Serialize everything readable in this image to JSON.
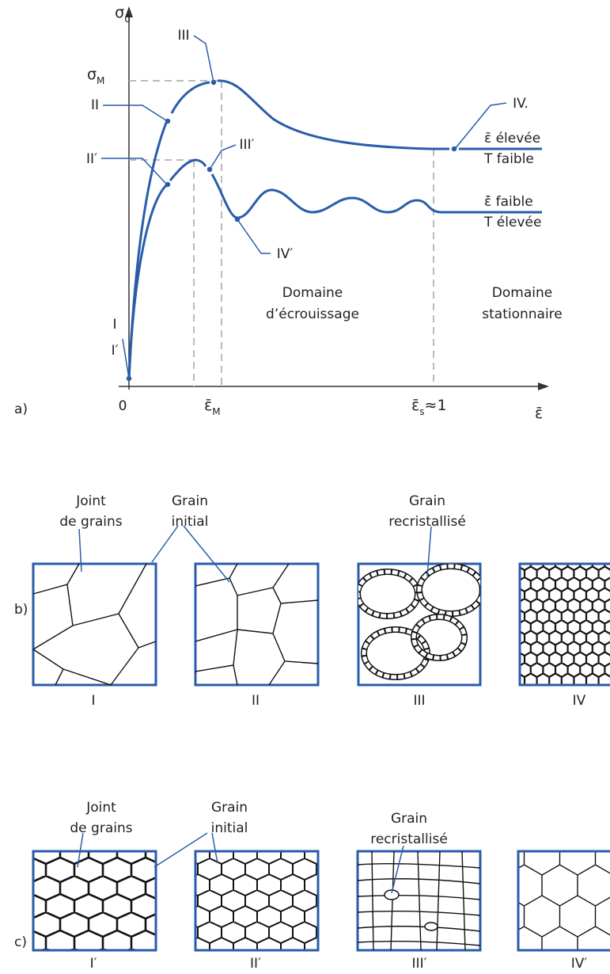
{
  "panel_a": {
    "label": "a)",
    "y_axis": {
      "symbol": "σ",
      "subscript": "0"
    },
    "sigma_max": {
      "symbol": "σ",
      "subscript": "M"
    },
    "x_axis": "ε̄",
    "origin": "0",
    "eps_max": {
      "symbol": "ε̄",
      "subscript": "M"
    },
    "eps_s": {
      "symbol": "ε̄",
      "subscript": "s",
      "suffix": "≈1"
    },
    "points": [
      "I",
      "I′",
      "II",
      "II′",
      "III",
      "III′",
      "IV.",
      "IV′"
    ],
    "curve_high": [
      "ε̄ élevée",
      "T faible"
    ],
    "curve_low": [
      "ε̇̄ faible",
      "T élevée"
    ],
    "domain_work": [
      "Domaine",
      "d’écrouissage"
    ],
    "domain_steady": [
      "Domaine",
      "stationnaire"
    ]
  },
  "panel_b": {
    "label": "b)",
    "callouts": {
      "joint": [
        "Joint",
        "de grains"
      ],
      "initial": [
        "Grain",
        "initial"
      ],
      "recryst": [
        "Grain",
        "recristallisé"
      ]
    },
    "captions": [
      "I",
      "II",
      "III",
      "IV"
    ]
  },
  "panel_c": {
    "label": "c)",
    "callouts": {
      "joint": [
        "Joint",
        "de grains"
      ],
      "initial": [
        "Grain",
        "initial"
      ],
      "recryst": [
        "Grain",
        "recristallisé"
      ]
    },
    "captions": [
      "I′",
      "II′",
      "III′",
      "IV′"
    ]
  }
}
